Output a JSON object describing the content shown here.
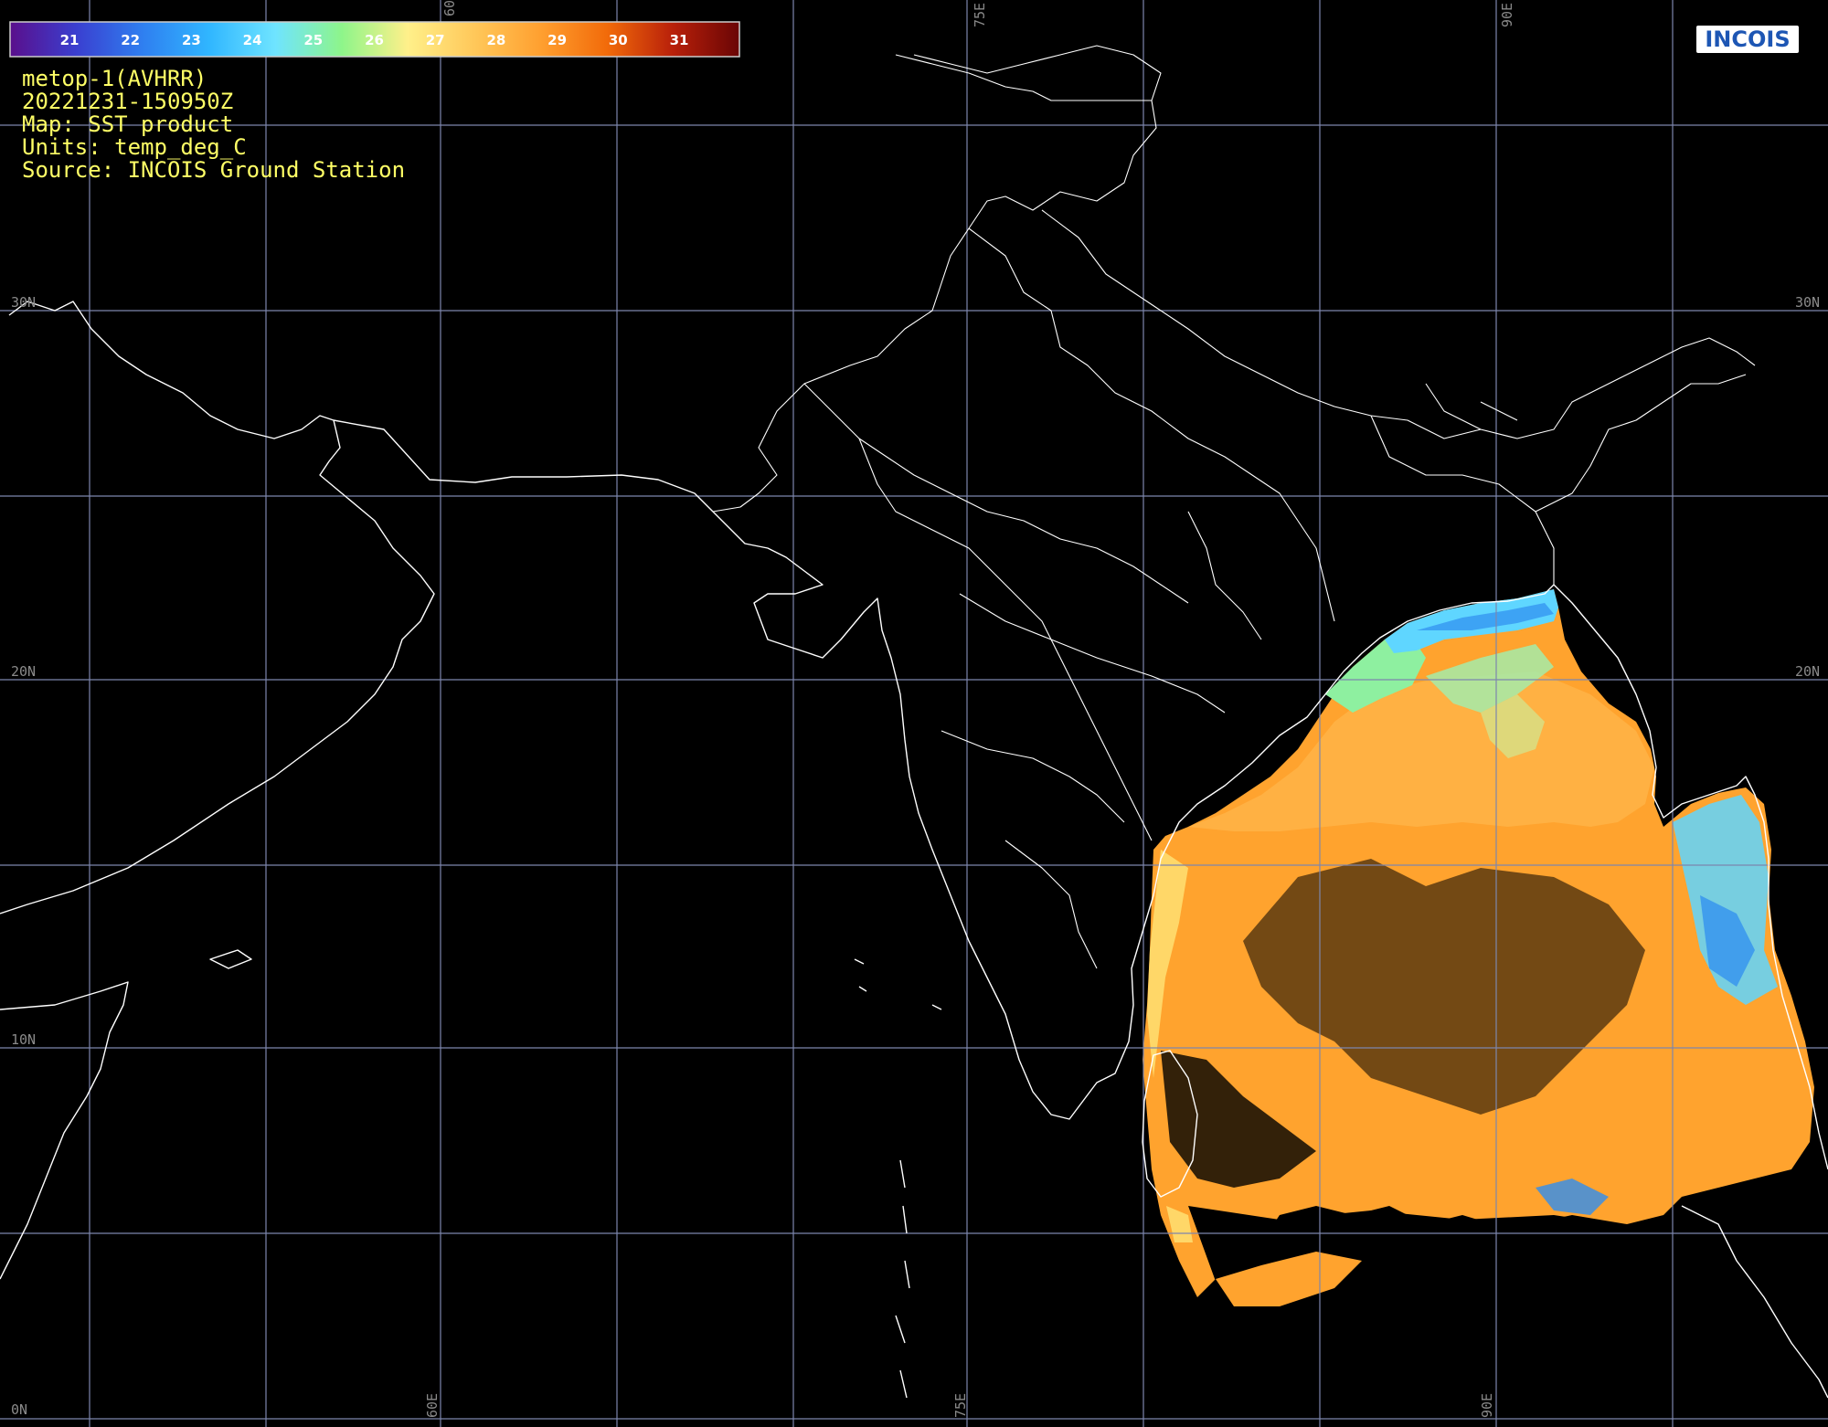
{
  "colorbar": {
    "labels": [
      "21",
      "22",
      "23",
      "24",
      "25",
      "26",
      "27",
      "28",
      "29",
      "30",
      "31"
    ],
    "colors": [
      "#5a0f8c",
      "#3a3fd0",
      "#2f7ff0",
      "#30b6ff",
      "#6fe4ff",
      "#8ef58a",
      "#fff08a",
      "#ffc85a",
      "#ffa030",
      "#f26b0a",
      "#b8200a",
      "#6a0505"
    ]
  },
  "info": {
    "satellite": "metop-1(AVHRR)",
    "timestamp": "20221231-150950Z",
    "map": "Map: SST product",
    "units": "Units: temp_deg_C",
    "source": "Source: INCOIS Ground Station"
  },
  "logo": {
    "text": "INCOIS"
  },
  "grid": {
    "lat_labels": [
      "30N",
      "20N",
      "10N",
      "0N"
    ],
    "lon_labels": [
      "60E",
      "75E",
      "90E"
    ]
  },
  "sst_colors": {
    "warm": "#ffa32e",
    "warm_light": "#ffb94a",
    "mid": "#ffd768",
    "green": "#8ef0a0",
    "cyan": "#5fd6ff",
    "blue": "#2f8df0"
  }
}
